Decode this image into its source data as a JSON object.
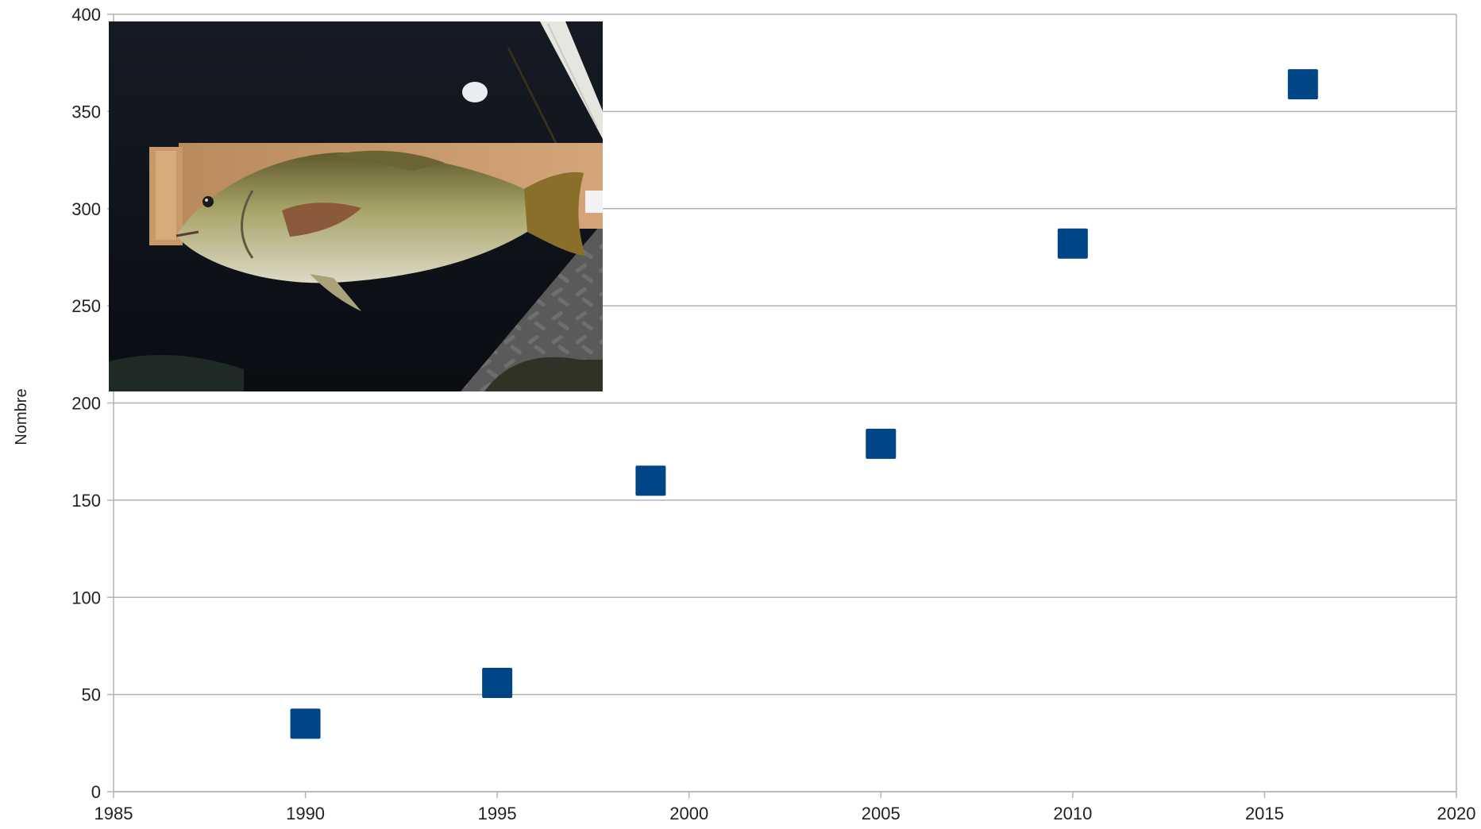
{
  "chart_data": {
    "type": "scatter",
    "title": "",
    "xlabel": "",
    "ylabel": "Nombre",
    "xlim": [
      1985,
      2020
    ],
    "ylim": [
      0,
      400
    ],
    "xticks": [
      1985,
      1990,
      1995,
      2000,
      2005,
      2010,
      2015,
      2020
    ],
    "yticks": [
      0,
      50,
      100,
      150,
      200,
      250,
      300,
      350,
      400
    ],
    "grid": "horizontal",
    "legend": "none",
    "series": [
      {
        "marker": "square",
        "color": "#004586",
        "points": [
          {
            "x": 1990,
            "y": 35
          },
          {
            "x": 1995,
            "y": 56
          },
          {
            "x": 1999,
            "y": 160
          },
          {
            "x": 2005,
            "y": 179
          },
          {
            "x": 2010,
            "y": 282
          },
          {
            "x": 2016,
            "y": 364
          }
        ]
      }
    ],
    "inset_image": "photo of a fish on a measuring board"
  },
  "colors": {
    "marker": "#004586",
    "grid": "#b3b3b3",
    "text": "#222222"
  }
}
